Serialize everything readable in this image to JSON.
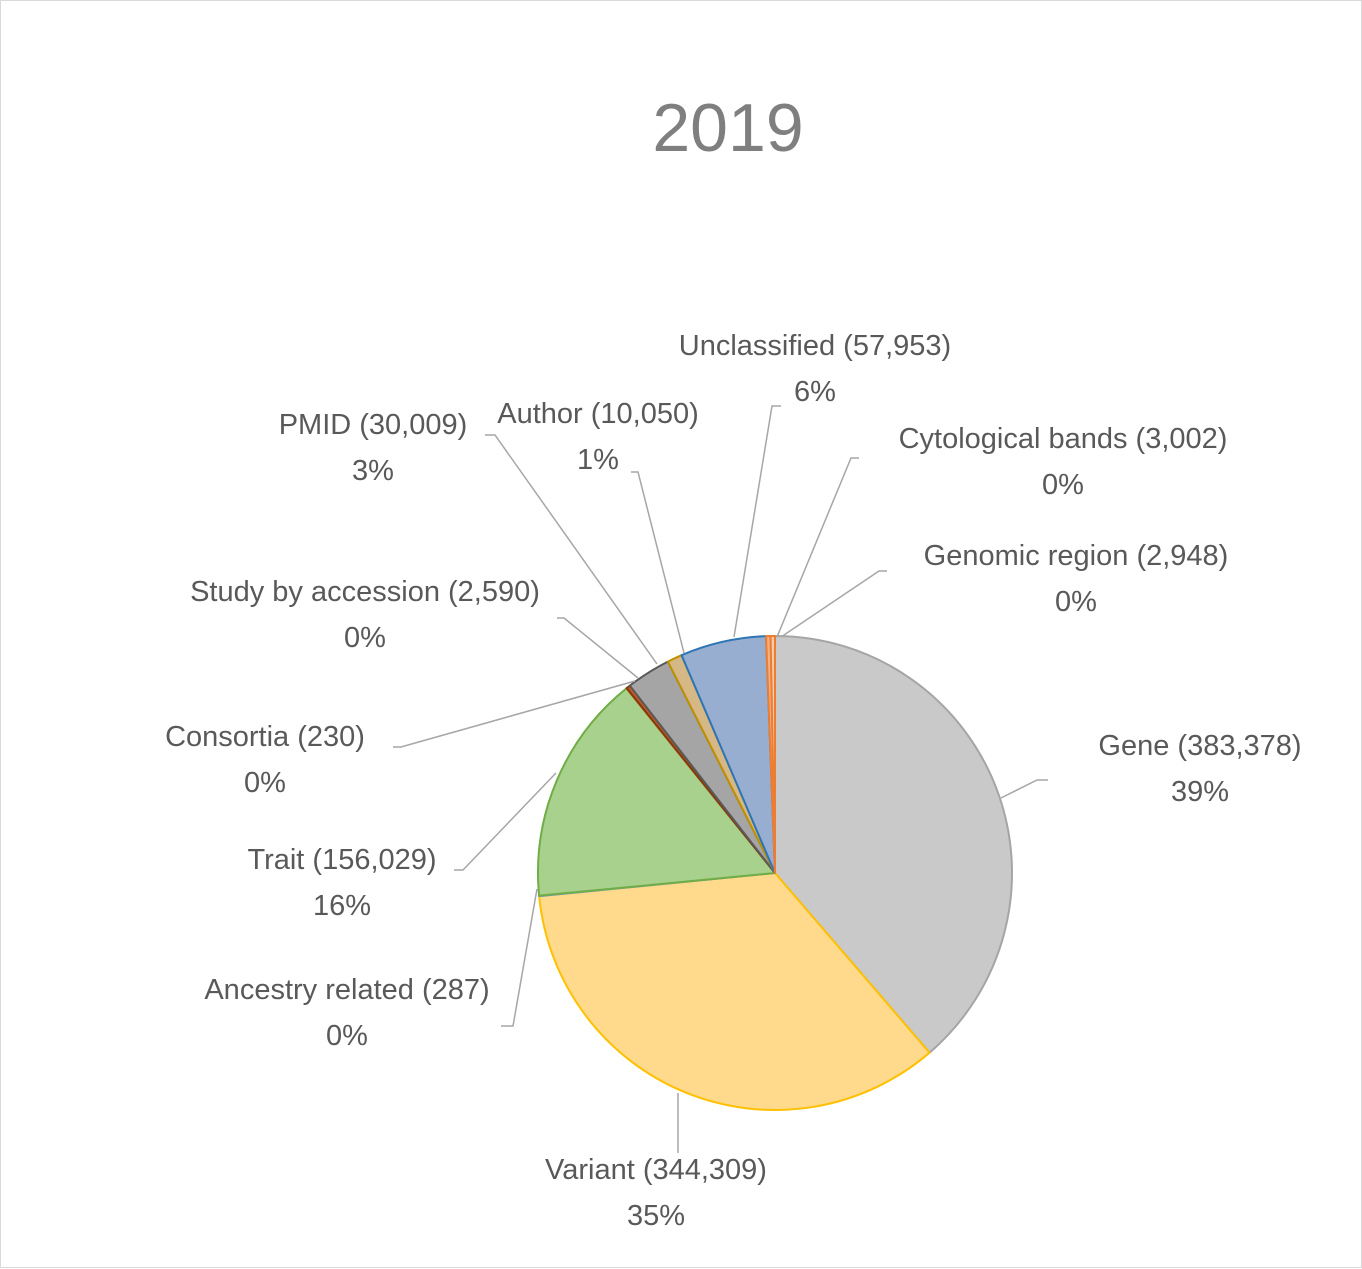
{
  "chart_data": {
    "type": "pie",
    "title": "2019",
    "slices": [
      {
        "name": "Gene",
        "value": 383378,
        "value_label": "(383,378)",
        "percent_label": "39%",
        "color": "#c9c9c9",
        "edge": "#a5a5a5"
      },
      {
        "name": "Variant",
        "value": 344309,
        "value_label": "(344,309)",
        "percent_label": "35%",
        "color": "#ffd98c",
        "edge": "#ffc000"
      },
      {
        "name": "Ancestry related",
        "value": 287,
        "value_label": "(287)",
        "percent_label": "0%",
        "color": "#9dc3e6",
        "edge": "#5b9bd5"
      },
      {
        "name": "Trait",
        "value": 156029,
        "value_label": "(156,029)",
        "percent_label": "16%",
        "color": "#a9d18e",
        "edge": "#70ad47"
      },
      {
        "name": "Consortia",
        "value": 230,
        "value_label": "(230)",
        "percent_label": "0%",
        "color": "#f4b183",
        "edge": "#c55a11"
      },
      {
        "name": "Study by accession",
        "value": 2590,
        "value_label": "(2,590)",
        "percent_label": "0%",
        "color": "#c65a2b",
        "edge": "#843c0c"
      },
      {
        "name": "PMID",
        "value": 30009,
        "value_label": "(30,009)",
        "percent_label": "3%",
        "color": "#a5a5a5",
        "edge": "#595959"
      },
      {
        "name": "Author",
        "value": 10050,
        "value_label": "(10,050)",
        "percent_label": "1%",
        "color": "#d6b887",
        "edge": "#bf9000"
      },
      {
        "name": "Unclassified",
        "value": 57953,
        "value_label": "(57,953)",
        "percent_label": "6%",
        "color": "#97aed1",
        "edge": "#2e75b6"
      },
      {
        "name": "Cytological bands",
        "value": 3002,
        "value_label": "(3,002)",
        "percent_label": "0%",
        "color": "#f4b183",
        "edge": "#ed7d31"
      },
      {
        "name": "Genomic region",
        "value": 2948,
        "value_label": "(2,948)",
        "percent_label": "0%",
        "color": "#f8cbad",
        "edge": "#ed7d31"
      }
    ]
  }
}
